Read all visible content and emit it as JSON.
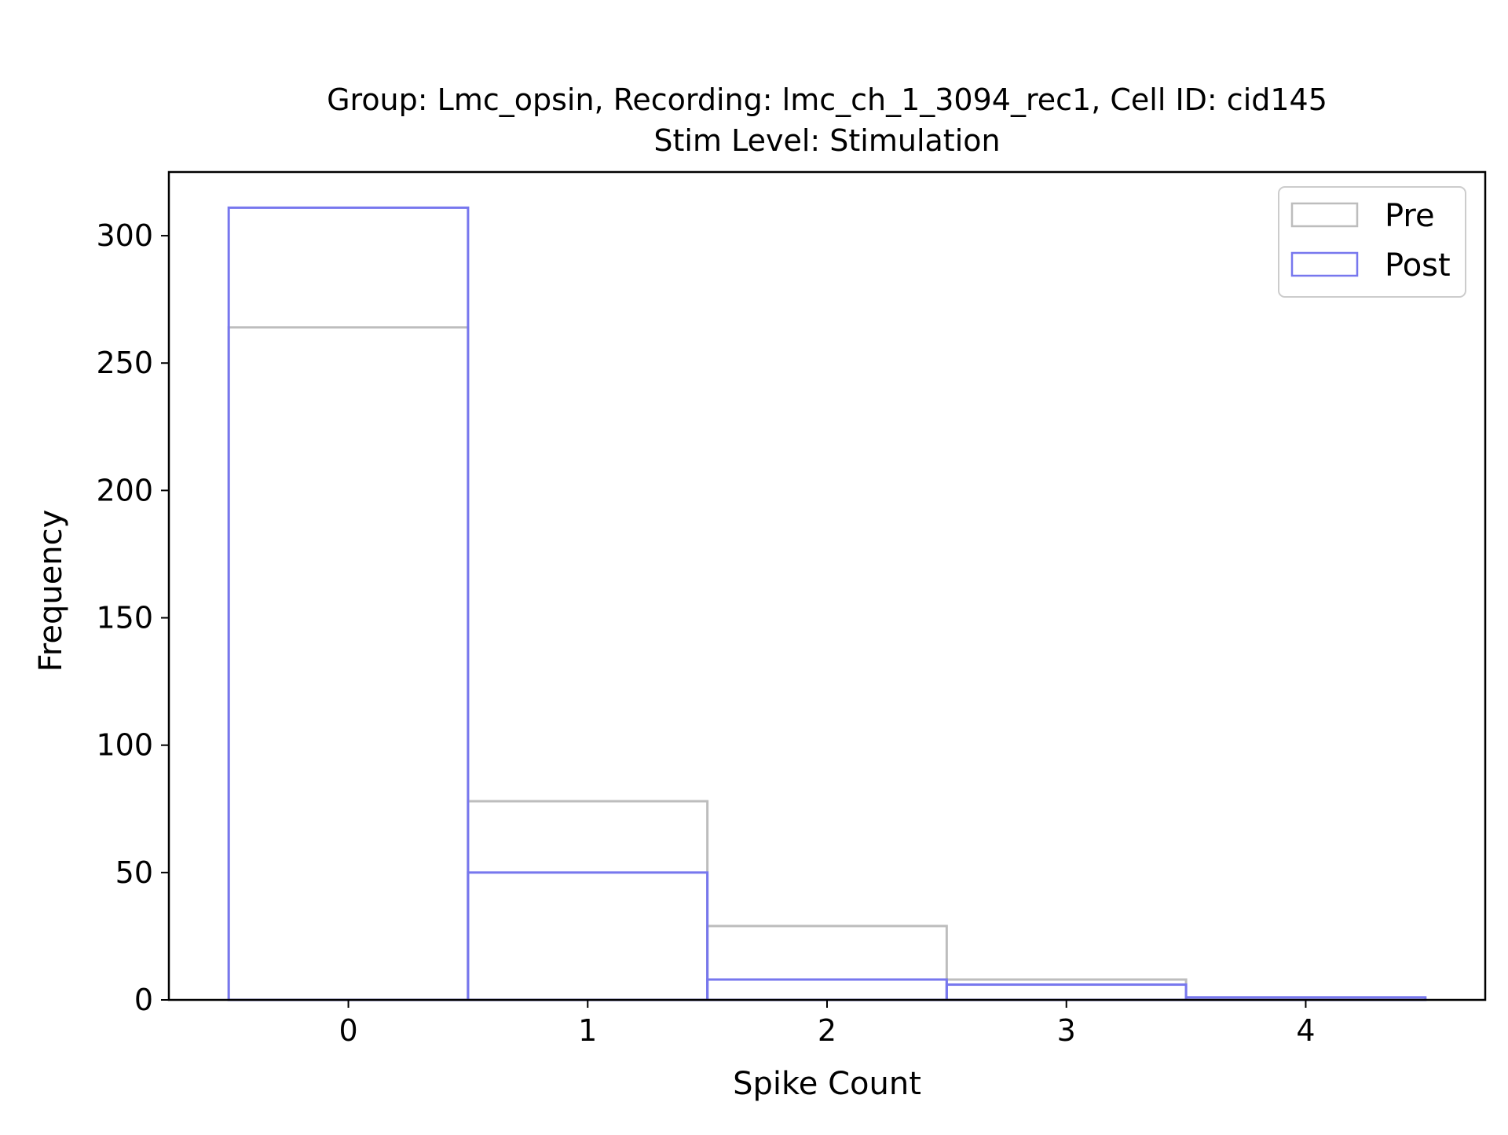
{
  "chart_data": {
    "type": "bar",
    "title_line1": "Group: Lmc_opsin, Recording: lmc_ch_1_3094_rec1, Cell ID: cid145",
    "title_line2": "Stim Level: Stimulation",
    "xlabel": "Spike Count",
    "ylabel": "Frequency",
    "categories": [
      0,
      1,
      2,
      3,
      4
    ],
    "bin_width": 1,
    "xlim": [
      -0.75,
      4.75
    ],
    "ylim": [
      0,
      325
    ],
    "x_ticks": [
      0,
      1,
      2,
      3,
      4
    ],
    "y_ticks": [
      0,
      50,
      100,
      150,
      200,
      250,
      300
    ],
    "grid": false,
    "legend_position": "top-right",
    "series": [
      {
        "name": "Pre",
        "color": "#bdbdbd",
        "values": [
          264,
          78,
          29,
          8,
          0
        ]
      },
      {
        "name": "Post",
        "color": "#7777ee",
        "values": [
          311,
          50,
          8,
          6,
          1
        ]
      }
    ]
  }
}
